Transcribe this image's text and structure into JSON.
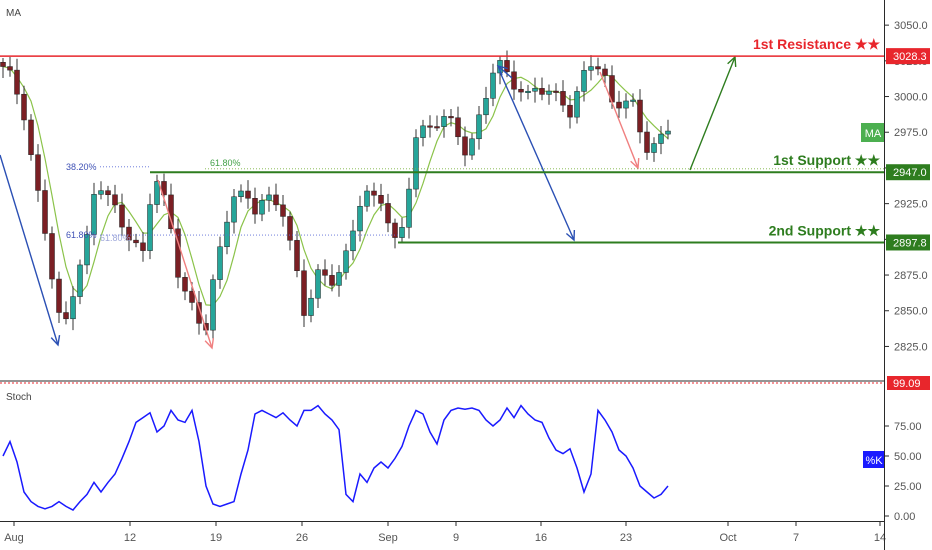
{
  "chart_data": [
    {
      "type": "candlestick",
      "pane_title": "MA",
      "ylim": [
        2805,
        3062
      ],
      "y_ticks": [
        2825,
        2850,
        2875,
        2900,
        2925,
        2950,
        2975,
        3000,
        3025,
        3050
      ],
      "y_tick_labels": [
        "2825.0",
        "2850.0",
        "2875.0",
        "2900.0",
        "2925.0",
        "2950.0",
        "2975.0",
        "3000.0",
        "3025.0",
        "3050.0"
      ],
      "x_tick_labels": [
        "Aug",
        "12",
        "19",
        "26",
        "Sep",
        "9",
        "16",
        "23",
        "Oct",
        "7",
        "14"
      ],
      "path": [
        [
          0,
          3018
        ],
        [
          1.5,
          3010
        ],
        [
          3,
          2990
        ],
        [
          4.5,
          2945
        ],
        [
          6,
          2905
        ],
        [
          7.5,
          2855
        ],
        [
          8.5,
          2832
        ],
        [
          9.5,
          2855
        ],
        [
          10.5,
          2878
        ],
        [
          12,
          2900
        ],
        [
          13,
          2930
        ],
        [
          14,
          2935
        ],
        [
          15,
          2928
        ],
        [
          16.5,
          2918
        ],
        [
          18,
          2905
        ],
        [
          19,
          2895
        ],
        [
          20,
          2888
        ],
        [
          21,
          2925
        ],
        [
          22,
          2940
        ],
        [
          23,
          2928
        ],
        [
          24,
          2910
        ],
        [
          25,
          2880
        ],
        [
          26.5,
          2855
        ],
        [
          28,
          2840
        ],
        [
          29,
          2838
        ],
        [
          30,
          2870
        ],
        [
          31,
          2895
        ],
        [
          32,
          2918
        ],
        [
          33,
          2932
        ],
        [
          34,
          2928
        ],
        [
          35,
          2925
        ],
        [
          36,
          2920
        ],
        [
          37,
          2928
        ],
        [
          38,
          2930
        ],
        [
          39,
          2928
        ],
        [
          40,
          2920
        ],
        [
          41,
          2895
        ],
        [
          42,
          2872
        ],
        [
          43,
          2848
        ],
        [
          44,
          2862
        ],
        [
          45,
          2878
        ],
        [
          46,
          2876
        ],
        [
          47.5,
          2870
        ],
        [
          49,
          2885
        ],
        [
          50,
          2905
        ],
        [
          51,
          2928
        ],
        [
          52,
          2935
        ],
        [
          53,
          2930
        ],
        [
          54,
          2928
        ],
        [
          55,
          2912
        ],
        [
          56,
          2895
        ],
        [
          57,
          2905
        ],
        [
          58,
          2940
        ],
        [
          59,
          2975
        ],
        [
          60,
          2978
        ],
        [
          61.5,
          2980
        ],
        [
          63,
          2982
        ],
        [
          64,
          2980
        ],
        [
          65,
          2975
        ],
        [
          66,
          2965
        ],
        [
          67,
          2970
        ],
        [
          68,
          2985
        ],
        [
          69,
          3000
        ],
        [
          70,
          3015
        ],
        [
          71,
          3020
        ],
        [
          72,
          3018
        ],
        [
          73,
          3012
        ],
        [
          74,
          3005
        ],
        [
          75,
          3000
        ],
        [
          76,
          3005
        ],
        [
          77,
          3002
        ],
        [
          78,
          3000
        ],
        [
          79,
          3002
        ],
        [
          80,
          3000
        ],
        [
          81,
          2990
        ],
        [
          82,
          3000
        ],
        [
          83,
          3015
        ],
        [
          84,
          3022
        ],
        [
          85,
          3018
        ],
        [
          86,
          3012
        ],
        [
          87,
          3000
        ],
        [
          88,
          2998
        ],
        [
          89,
          2995
        ],
        [
          90,
          2992
        ],
        [
          91,
          2975
        ],
        [
          92,
          2962
        ],
        [
          93,
          2965
        ],
        [
          94,
          2975
        ],
        [
          95,
          2982
        ]
      ],
      "levels": [
        {
          "label": "1st Resistance ★★",
          "value": 3028.3,
          "tag": "3028.3",
          "color": "#e8262c"
        },
        {
          "label": "1st Support ★★",
          "value": 2947.0,
          "tag": "2947.0",
          "color": "#2e7d1f"
        },
        {
          "label": "2nd Support ★★",
          "value": 2897.8,
          "tag": "2897.8",
          "color": "#2e7d1f"
        }
      ],
      "fib_labels": [
        "38.20%",
        "61.80%",
        "61.80%",
        "61.80%"
      ],
      "ma_badge": "MA",
      "colors": {
        "up": "#26a69a",
        "down": "#7b1f24",
        "ma": "#8bc34a",
        "resistance": "#e8262c",
        "support": "#2e7d1f",
        "arrow_blue": "#2b50b4",
        "arrow_red": "#f08080",
        "arrow_green": "#2e7d1f"
      }
    },
    {
      "type": "line",
      "pane_title": "Stoch",
      "series": [
        {
          "name": "%K",
          "values": [
            50,
            62,
            45,
            20,
            12,
            8,
            6,
            8,
            12,
            8,
            5,
            12,
            18,
            28,
            20,
            28,
            35,
            48,
            62,
            78,
            82,
            86,
            70,
            75,
            88,
            80,
            78,
            88,
            62,
            25,
            10,
            8,
            10,
            12,
            35,
            55,
            85,
            88,
            85,
            82,
            86,
            80,
            75,
            88,
            88,
            92,
            85,
            80,
            72,
            18,
            12,
            35,
            28,
            40,
            45,
            40,
            48,
            58,
            75,
            88,
            85,
            70,
            60,
            80,
            88,
            90,
            89,
            90,
            88,
            80,
            75,
            80,
            90,
            82,
            92,
            85,
            80,
            78,
            65,
            55,
            52,
            56,
            40,
            20,
            35,
            88,
            80,
            70,
            55,
            50,
            40,
            25,
            20,
            15,
            18,
            25
          ]
        }
      ],
      "ylim": [
        0,
        100
      ],
      "y_ticks": [
        0,
        25,
        50,
        75
      ],
      "y_tick_labels": [
        "0.00",
        "25.00",
        "50.00",
        "75.00"
      ],
      "overbought_tag": "99.09",
      "badge": "%K",
      "color": "#1a1aff"
    }
  ]
}
